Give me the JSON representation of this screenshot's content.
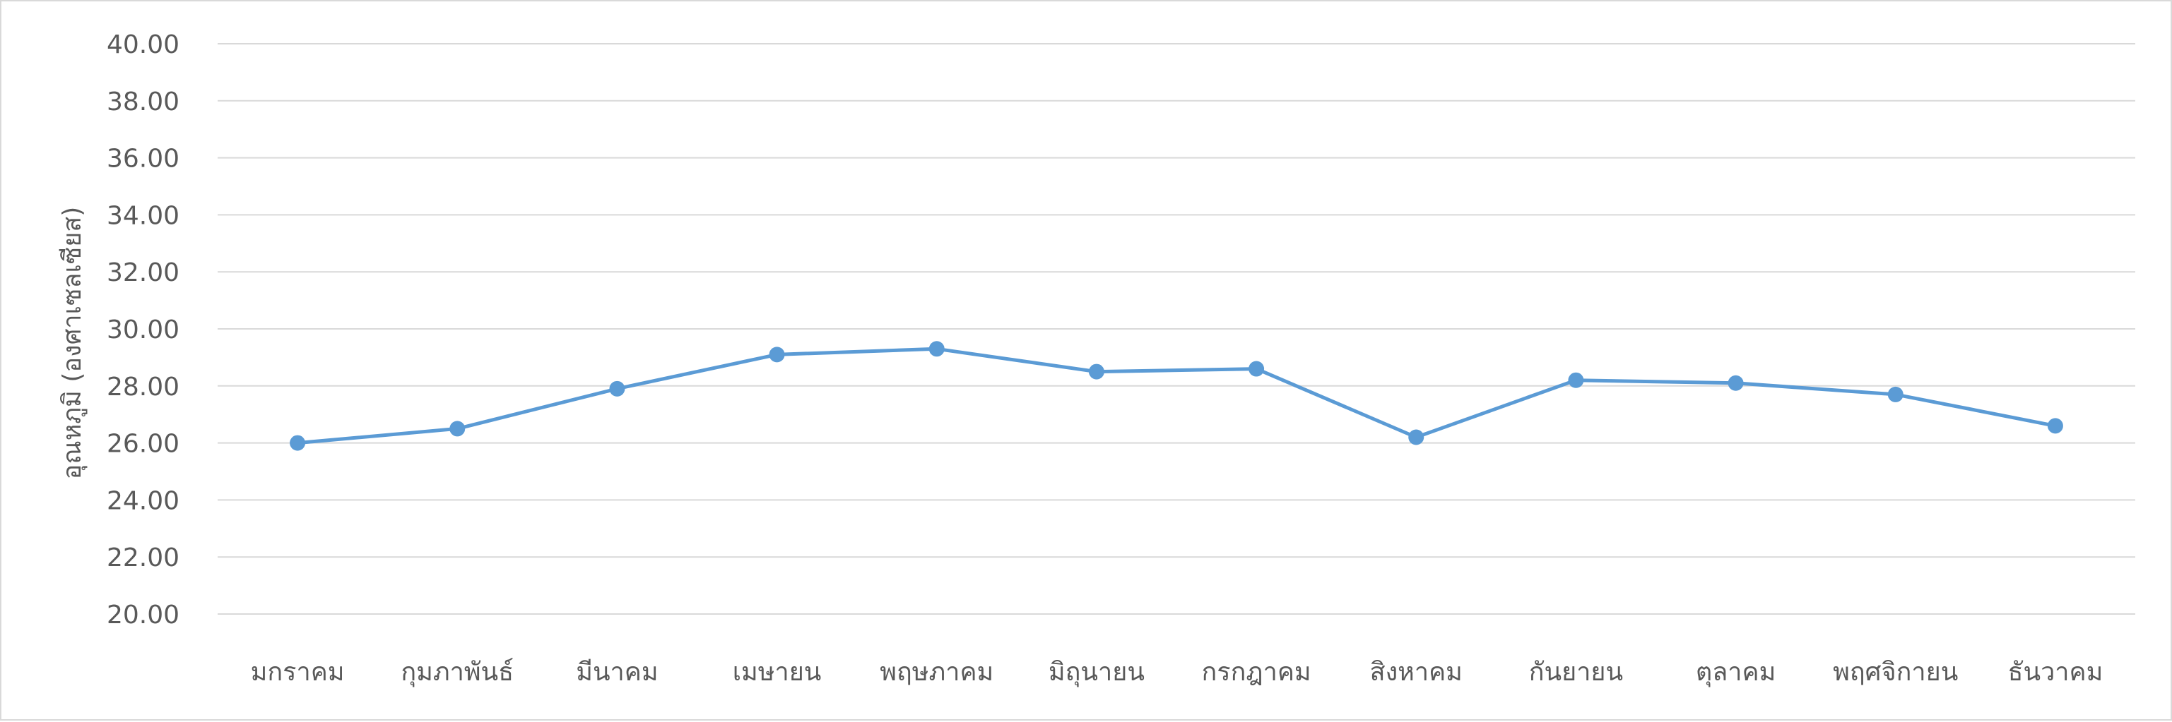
{
  "chart_data": {
    "type": "line",
    "title": "",
    "xlabel": "",
    "ylabel": "อุณหภูมิ (องศาเซลเซียส)",
    "ylim": [
      20,
      40
    ],
    "ytick_step": 2,
    "ytick_decimals": 2,
    "grid": true,
    "legend": "none",
    "categories": [
      "มกราคม",
      "กุมภาพันธ์",
      "มีนาคม",
      "เมษายน",
      "พฤษภาคม",
      "มิถุนายน",
      "กรกฎาคม",
      "สิงหาคม",
      "กันยายน",
      "ตุลาคม",
      "พฤศจิกายน",
      "ธันวาคม"
    ],
    "series": [
      {
        "color": "#5b9bd5",
        "values": [
          26.0,
          26.5,
          27.9,
          29.1,
          29.3,
          28.5,
          28.6,
          26.2,
          28.2,
          28.1,
          27.7,
          26.6
        ]
      }
    ]
  }
}
